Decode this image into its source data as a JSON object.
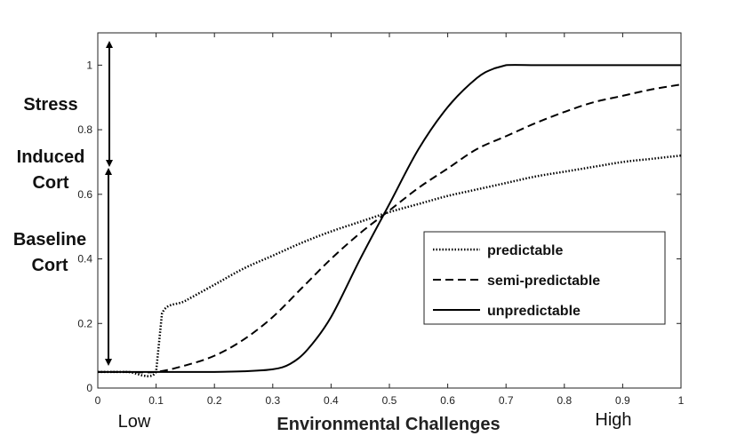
{
  "chart_data": {
    "type": "line",
    "title": "",
    "xlabel": "Environmental Challenges",
    "ylabel": "",
    "xlim": [
      0,
      1
    ],
    "ylim": [
      0,
      1.1
    ],
    "x_ticks": [
      0,
      0.1,
      0.2,
      0.3,
      0.4,
      0.5,
      0.6,
      0.7,
      0.8,
      0.9,
      1
    ],
    "x_tick_labels": [
      "0",
      "0.1",
      "0.2",
      "0.3",
      "0.4",
      "0.5",
      "0.6",
      "0.7",
      "0.8",
      "0.9",
      "1"
    ],
    "y_ticks": [
      0,
      0.2,
      0.4,
      0.6,
      0.8,
      1
    ],
    "y_tick_labels": [
      "0",
      "0.2",
      "0.4",
      "0.6",
      "0.8",
      "1"
    ],
    "x_end_labels": {
      "low": "Low",
      "high": "High"
    },
    "side_annotations": {
      "stress_induced_cort": [
        "Stress",
        "Induced",
        "Cort"
      ],
      "baseline_cort": [
        "Baseline",
        "Cort"
      ]
    },
    "grid": false,
    "legend_position": "center-right",
    "series": [
      {
        "name": "predictable",
        "style": "dotted",
        "x": [
          0,
          0.05,
          0.1,
          0.11,
          0.15,
          0.2,
          0.25,
          0.3,
          0.35,
          0.4,
          0.45,
          0.5,
          0.55,
          0.6,
          0.65,
          0.7,
          0.75,
          0.8,
          0.85,
          0.9,
          0.95,
          1.0
        ],
        "y": [
          0.05,
          0.05,
          0.05,
          0.23,
          0.27,
          0.32,
          0.37,
          0.41,
          0.45,
          0.485,
          0.515,
          0.545,
          0.57,
          0.595,
          0.615,
          0.635,
          0.655,
          0.67,
          0.685,
          0.7,
          0.71,
          0.72
        ]
      },
      {
        "name": "semi-predictable",
        "style": "dashed",
        "x": [
          0,
          0.05,
          0.1,
          0.15,
          0.2,
          0.25,
          0.3,
          0.35,
          0.4,
          0.45,
          0.5,
          0.55,
          0.6,
          0.65,
          0.7,
          0.75,
          0.8,
          0.85,
          0.9,
          0.95,
          1.0
        ],
        "y": [
          0.05,
          0.05,
          0.05,
          0.07,
          0.1,
          0.15,
          0.22,
          0.31,
          0.4,
          0.48,
          0.55,
          0.62,
          0.68,
          0.74,
          0.78,
          0.82,
          0.855,
          0.885,
          0.905,
          0.925,
          0.94
        ]
      },
      {
        "name": "unpredictable",
        "style": "solid",
        "x": [
          0,
          0.05,
          0.1,
          0.15,
          0.2,
          0.25,
          0.3,
          0.33,
          0.36,
          0.4,
          0.45,
          0.5,
          0.55,
          0.6,
          0.65,
          0.68,
          0.7,
          0.75,
          0.8,
          0.85,
          0.9,
          0.95,
          1.0
        ],
        "y": [
          0.05,
          0.05,
          0.05,
          0.05,
          0.05,
          0.052,
          0.058,
          0.075,
          0.12,
          0.22,
          0.4,
          0.57,
          0.74,
          0.87,
          0.96,
          0.99,
          1.0,
          1.0,
          1.0,
          1.0,
          1.0,
          1.0,
          1.0
        ]
      }
    ]
  }
}
